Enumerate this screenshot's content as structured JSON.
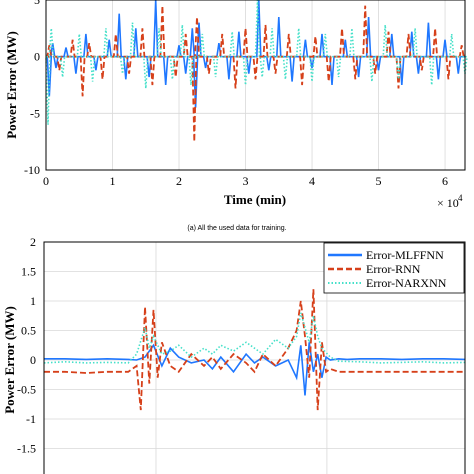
{
  "colors": {
    "mlffnn": "#1f77ff",
    "rnn": "#d6401a",
    "narxnn": "#45e0c9",
    "grid": "#d9d9d9",
    "axis": "#000000"
  },
  "chart_data": [
    {
      "type": "line",
      "ylabel": "Power Error (MW)",
      "xlabel": "Time (min)",
      "x_multiplier_label": "× 10",
      "x_multiplier_exponent": "4",
      "xlim": [
        0,
        6.3
      ],
      "ylim": [
        -10,
        5
      ],
      "x_ticks": [
        "0",
        "1",
        "2",
        "3",
        "4",
        "5",
        "6"
      ],
      "y_ticks": [
        "5",
        "0",
        "-5",
        "-10"
      ],
      "grid": true,
      "series": [
        {
          "style": "solid",
          "x": [
            0.05,
            0.1,
            0.15,
            0.3,
            0.45,
            0.6,
            0.75,
            0.95,
            1.1,
            1.2,
            1.35,
            1.55,
            1.65,
            1.8,
            2.0,
            2.1,
            2.2,
            2.25,
            2.3,
            2.4,
            2.6,
            2.75,
            2.9,
            3.05,
            3.2,
            3.35,
            3.5,
            3.7,
            3.9,
            4.0,
            4.15,
            4.3,
            4.5,
            4.7,
            4.85,
            5.0,
            5.2,
            5.35,
            5.5,
            5.6,
            5.75,
            5.9,
            6.0,
            6.2
          ],
          "values": [
            -3.5,
            1.2,
            -1.0,
            0.8,
            -1.5,
            2.0,
            -1.2,
            1.5,
            3.8,
            -2.0,
            2.5,
            -1.8,
            5.2,
            -2.5,
            1.0,
            -1.5,
            2.5,
            -4.5,
            3.0,
            -1.0,
            1.2,
            -2.0,
            2.2,
            -1.5,
            5.0,
            -1.2,
            3.5,
            -2.2,
            1.5,
            -1.0,
            2.0,
            -2.5,
            1.5,
            -1.8,
            3.5,
            -1.2,
            2.0,
            -2.5,
            2.2,
            -1.5,
            3.0,
            -2.0,
            1.5,
            -1.5
          ]
        },
        {
          "style": "dashed",
          "x": [
            0.05,
            0.2,
            0.4,
            0.55,
            0.65,
            0.85,
            1.05,
            1.25,
            1.45,
            1.6,
            1.75,
            1.95,
            2.1,
            2.23,
            2.27,
            2.45,
            2.65,
            2.85,
            3.0,
            3.15,
            3.3,
            3.45,
            3.65,
            3.85,
            4.05,
            4.25,
            4.45,
            4.65,
            4.8,
            4.95,
            5.15,
            5.3,
            5.45,
            5.65,
            5.85,
            6.05,
            6.25
          ],
          "values": [
            1.0,
            -1.2,
            1.5,
            -3.5,
            1.2,
            -2.0,
            2.0,
            -1.5,
            2.5,
            -2.5,
            4.5,
            -1.8,
            2.0,
            -7.5,
            3.5,
            -1.5,
            2.0,
            -2.8,
            2.5,
            -2.0,
            2.8,
            -1.5,
            2.0,
            -2.5,
            1.8,
            -2.2,
            2.5,
            -2.0,
            4.5,
            -1.5,
            2.2,
            -2.8,
            2.0,
            -1.2,
            2.5,
            -2.0,
            1.0
          ]
        },
        {
          "style": "dotted",
          "x": [
            0.03,
            0.08,
            0.25,
            0.5,
            0.7,
            0.9,
            1.15,
            1.3,
            1.5,
            1.7,
            1.9,
            2.05,
            2.18,
            2.35,
            2.55,
            2.8,
            3.0,
            3.18,
            3.25,
            3.4,
            3.6,
            3.8,
            4.0,
            4.2,
            4.4,
            4.6,
            4.9,
            5.1,
            5.3,
            5.55,
            5.8,
            6.1,
            6.3
          ],
          "values": [
            -6.0,
            2.5,
            -1.8,
            2.0,
            -2.2,
            2.5,
            -1.5,
            3.0,
            -2.8,
            2.5,
            -2.0,
            2.8,
            -2.5,
            2.0,
            -1.8,
            2.2,
            -2.5,
            5.5,
            -1.8,
            2.5,
            -2.0,
            2.5,
            -2.2,
            2.0,
            -1.8,
            2.5,
            -2.2,
            2.8,
            -2.0,
            2.5,
            -2.5,
            2.0,
            -1.5
          ]
        }
      ]
    },
    {
      "caption": "(a) All the used data for training.",
      "type": "line",
      "ylabel": "Power Error (MW)",
      "ylim": [
        -2,
        2
      ],
      "y_ticks": [
        "2",
        "1.5",
        "1",
        "0.5",
        "0",
        "-0.5",
        "-1",
        "-1.5"
      ],
      "grid": true,
      "legend_position": "top-right",
      "series": [
        {
          "name": "Error-MLFFNN",
          "style": "solid",
          "x": [
            0,
            5,
            10,
            15,
            20,
            22,
            24,
            26,
            28,
            30,
            32,
            35,
            38,
            40,
            42,
            45,
            48,
            50,
            52,
            55,
            58,
            60,
            61,
            62,
            63,
            64,
            65,
            66,
            67,
            68,
            70,
            72,
            75,
            80,
            85,
            90,
            95,
            100
          ],
          "values": [
            0.02,
            0.02,
            0.01,
            0.02,
            0.01,
            0.0,
            0.05,
            0.25,
            -0.1,
            0.2,
            0.05,
            -0.05,
            0.0,
            -0.15,
            0.05,
            -0.2,
            0.1,
            -0.05,
            0.05,
            -0.1,
            0.0,
            -0.3,
            0.25,
            -0.6,
            0.3,
            -0.2,
            0.1,
            -0.3,
            0.05,
            0.0,
            0.02,
            0.01,
            0.02,
            0.02,
            0.01,
            0.02,
            0.02,
            0.01
          ]
        },
        {
          "name": "Error-RNN",
          "style": "dashed",
          "x": [
            0,
            5,
            10,
            15,
            20,
            22,
            23,
            24,
            25,
            26,
            27,
            28,
            30,
            32,
            35,
            38,
            40,
            42,
            45,
            48,
            50,
            52,
            55,
            58,
            60,
            61,
            62,
            63,
            64,
            65,
            66,
            67,
            68,
            70,
            75,
            80,
            85,
            90,
            95,
            100
          ],
          "values": [
            -0.2,
            -0.2,
            -0.22,
            -0.2,
            -0.2,
            -0.1,
            -0.85,
            0.9,
            -0.4,
            0.85,
            -0.3,
            0.3,
            -0.1,
            -0.2,
            0.1,
            -0.1,
            0.05,
            -0.15,
            0.1,
            -0.05,
            -0.2,
            0.1,
            -0.1,
            0.2,
            0.5,
            1.0,
            0.4,
            -0.3,
            1.2,
            -0.85,
            0.3,
            -0.2,
            -0.15,
            -0.2,
            -0.2,
            -0.2,
            -0.2,
            -0.2,
            -0.2,
            -0.2
          ]
        },
        {
          "name": "Error-NARXNN",
          "style": "dotted",
          "x": [
            0,
            5,
            10,
            15,
            20,
            22,
            24,
            25,
            26,
            28,
            30,
            32,
            35,
            38,
            40,
            42,
            45,
            48,
            50,
            52,
            55,
            58,
            60,
            61,
            62,
            63,
            64,
            65,
            66,
            68,
            70,
            75,
            80,
            85,
            90,
            95,
            100
          ],
          "values": [
            -0.05,
            -0.03,
            -0.05,
            -0.04,
            -0.05,
            0.1,
            0.55,
            0.2,
            0.4,
            0.1,
            0.15,
            0.25,
            0.05,
            0.2,
            0.1,
            0.25,
            0.15,
            0.3,
            0.2,
            0.1,
            0.35,
            0.2,
            0.4,
            0.8,
            0.55,
            0.3,
            0.75,
            0.4,
            0.2,
            0.05,
            -0.02,
            -0.03,
            -0.05,
            -0.04,
            -0.03,
            -0.05,
            -0.04
          ]
        }
      ]
    }
  ]
}
